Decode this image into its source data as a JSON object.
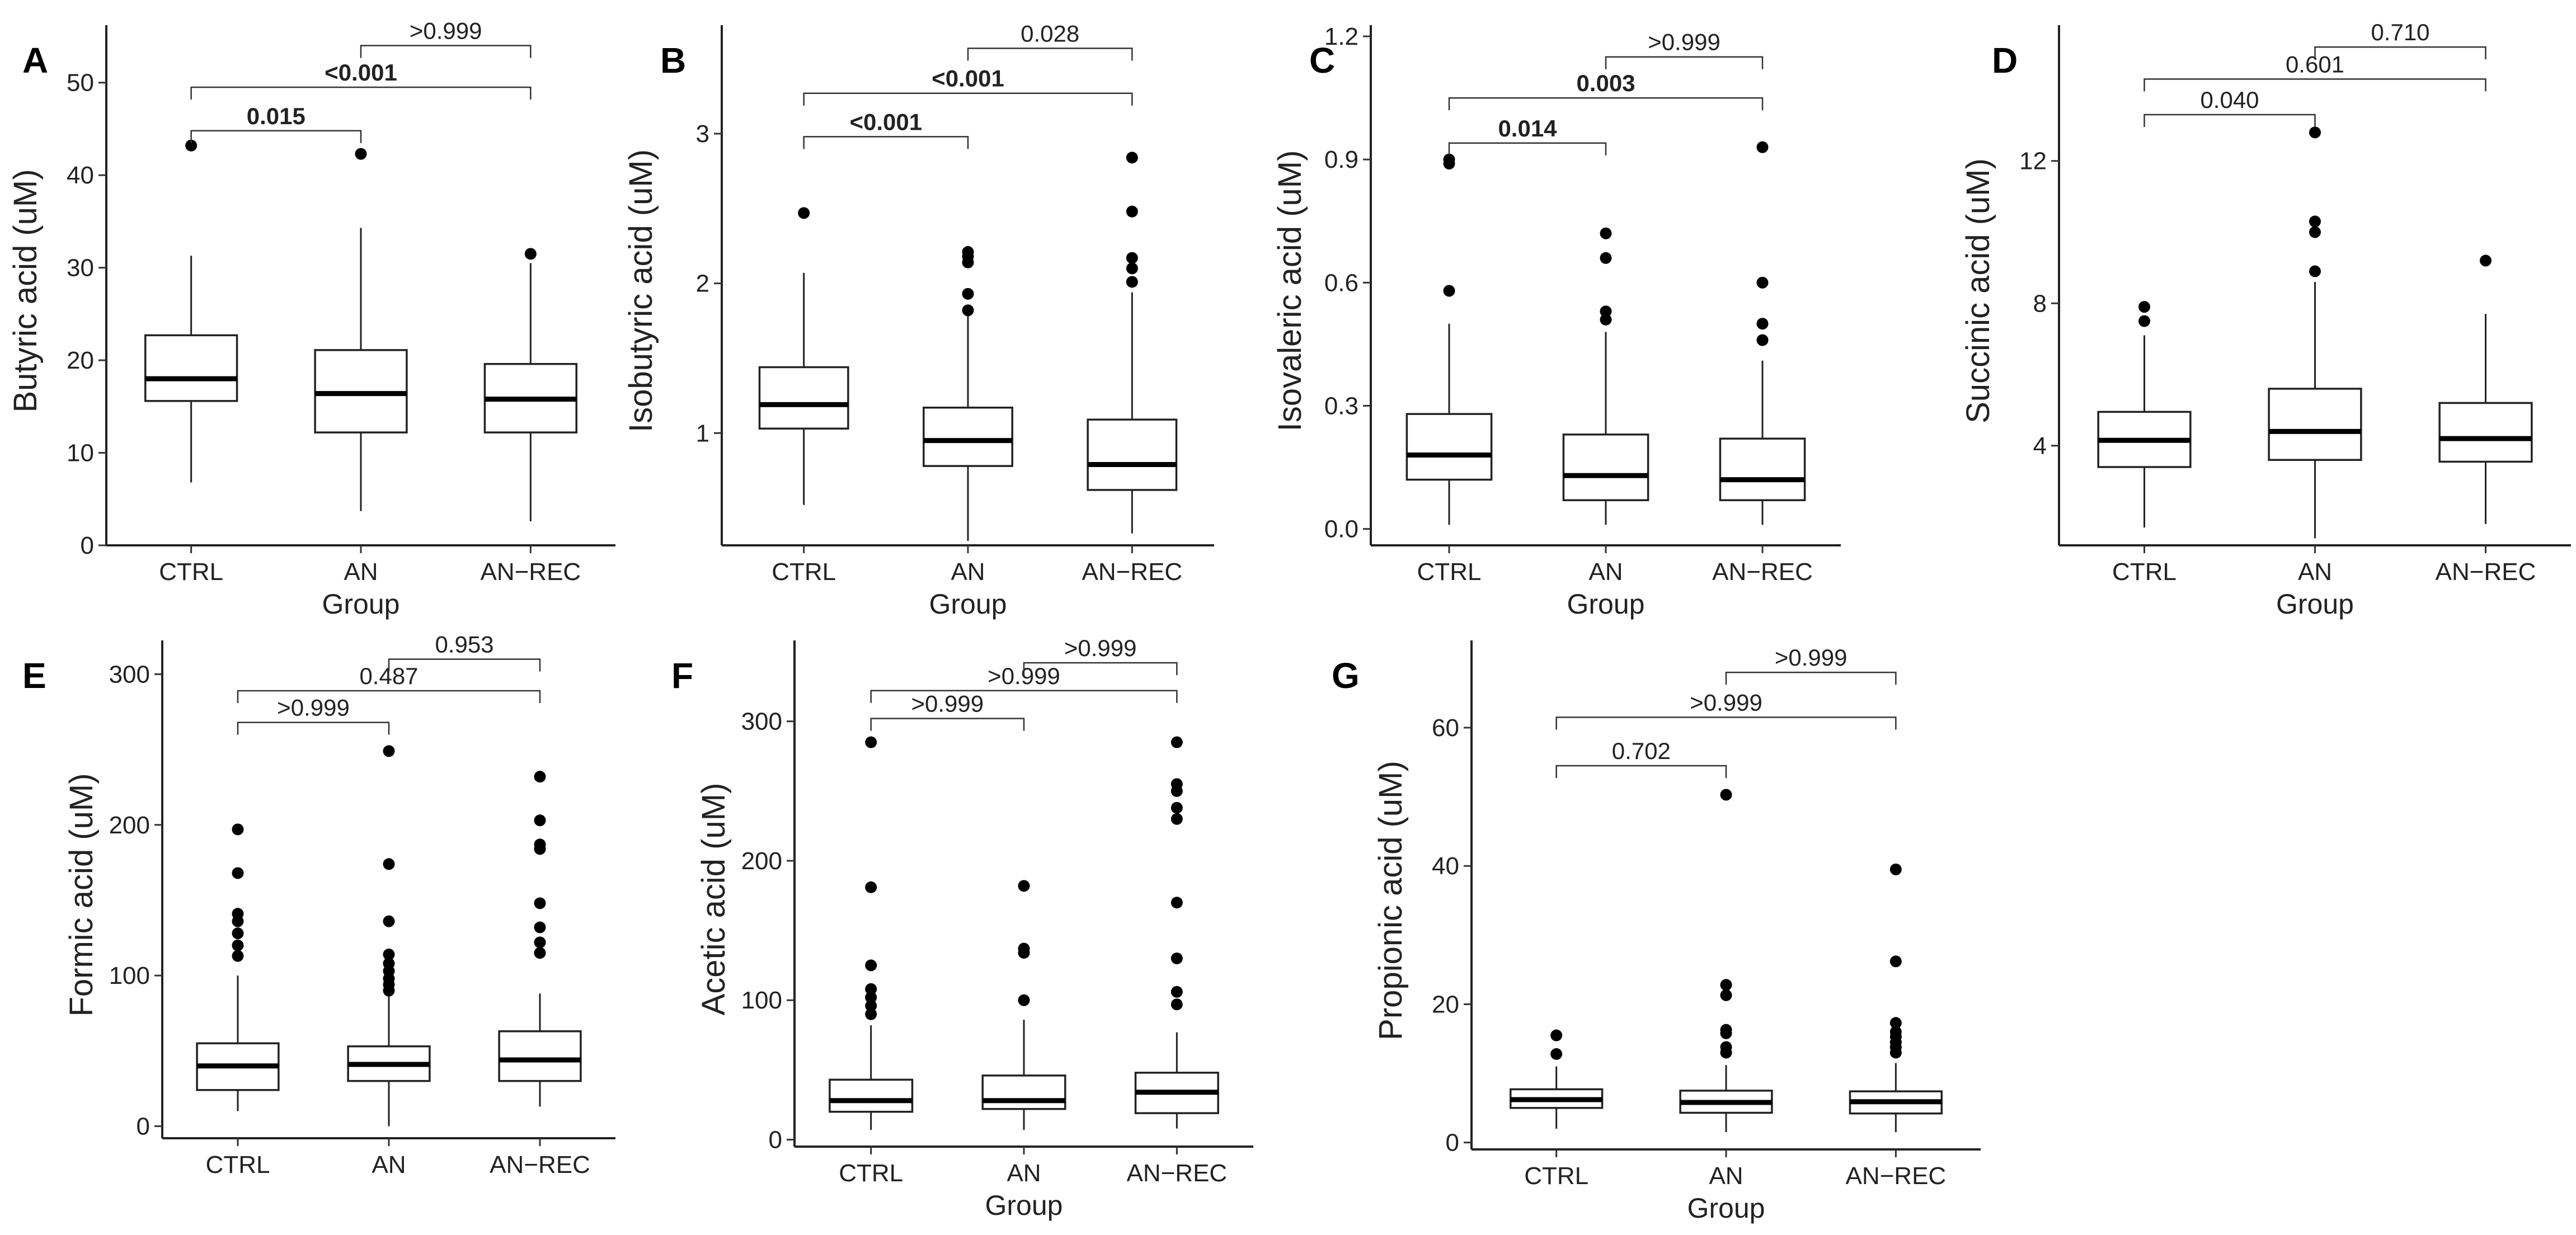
{
  "chart_data": [
    {
      "panel": "A",
      "type": "box",
      "ylabel": "Butyric acid (uM)",
      "xlabel": "Group",
      "categories": [
        "CTRL",
        "AN",
        "AN−REC"
      ],
      "ylim": [
        0,
        55
      ],
      "yticks": [
        0,
        10,
        20,
        30,
        40,
        50
      ],
      "boxes": [
        {
          "low": 6.8,
          "q1": 15.6,
          "median": 18.0,
          "q3": 22.7,
          "high": 31.3,
          "outliers": [
            43.2
          ]
        },
        {
          "low": 3.7,
          "q1": 12.2,
          "median": 16.4,
          "q3": 21.1,
          "high": 34.3,
          "outliers": [
            42.3
          ]
        },
        {
          "low": 2.6,
          "q1": 12.2,
          "median": 15.8,
          "q3": 19.6,
          "high": 30.5,
          "outliers": [
            31.5
          ]
        }
      ],
      "comparisons": [
        {
          "from": 0,
          "to": 1,
          "y": 44.8,
          "label": "0.015",
          "bold": true
        },
        {
          "from": 0,
          "to": 2,
          "y": 49.5,
          "label": "<0.001",
          "bold": true
        },
        {
          "from": 1,
          "to": 2,
          "y": 54.0,
          "label": ">0.999",
          "bold": false
        }
      ]
    },
    {
      "panel": "B",
      "type": "box",
      "ylabel": "Isobutyric acid (uM)",
      "xlabel": "Group",
      "categories": [
        "CTRL",
        "AN",
        "AN−REC"
      ],
      "ylim": [
        0.25,
        3.65
      ],
      "yticks": [
        1,
        2,
        3
      ],
      "boxes": [
        {
          "low": 0.52,
          "q1": 1.03,
          "median": 1.19,
          "q3": 1.44,
          "high": 2.07,
          "outliers": [
            2.47
          ]
        },
        {
          "low": 0.28,
          "q1": 0.78,
          "median": 0.95,
          "q3": 1.17,
          "high": 1.8,
          "outliers": [
            1.82,
            1.93,
            2.14,
            2.18,
            2.21
          ]
        },
        {
          "low": 0.33,
          "q1": 0.62,
          "median": 0.79,
          "q3": 1.09,
          "high": 1.94,
          "outliers": [
            2.01,
            2.1,
            2.17,
            2.48,
            2.84
          ]
        }
      ],
      "comparisons": [
        {
          "from": 0,
          "to": 1,
          "y": 2.98,
          "label": "<0.001",
          "bold": true
        },
        {
          "from": 0,
          "to": 2,
          "y": 3.27,
          "label": "<0.001",
          "bold": true
        },
        {
          "from": 1,
          "to": 2,
          "y": 3.57,
          "label": "0.028",
          "bold": false
        }
      ]
    },
    {
      "panel": "C",
      "type": "box",
      "ylabel": "Isovaleric acid (uM)",
      "xlabel": "Group",
      "categories": [
        "CTRL",
        "AN",
        "AN−REC"
      ],
      "ylim": [
        -0.04,
        1.2
      ],
      "yticks": [
        0.0,
        0.3,
        0.6,
        0.9,
        1.2
      ],
      "tick_labels": [
        "0.0",
        "0.3",
        "0.6",
        "0.9",
        "1.2"
      ],
      "boxes": [
        {
          "low": 0.01,
          "q1": 0.12,
          "median": 0.18,
          "q3": 0.28,
          "high": 0.5,
          "outliers": [
            0.58,
            0.89,
            0.9
          ]
        },
        {
          "low": 0.01,
          "q1": 0.07,
          "median": 0.13,
          "q3": 0.23,
          "high": 0.48,
          "outliers": [
            0.51,
            0.53,
            0.66,
            0.72
          ]
        },
        {
          "low": 0.01,
          "q1": 0.07,
          "median": 0.12,
          "q3": 0.22,
          "high": 0.41,
          "outliers": [
            0.46,
            0.5,
            0.6,
            0.93
          ]
        }
      ],
      "comparisons": [
        {
          "from": 0,
          "to": 1,
          "y": 0.94,
          "label": "0.014",
          "bold": true
        },
        {
          "from": 0,
          "to": 2,
          "y": 1.05,
          "label": "0.003",
          "bold": true
        },
        {
          "from": 1,
          "to": 2,
          "y": 1.15,
          "label": ">0.999",
          "bold": false
        }
      ]
    },
    {
      "panel": "D",
      "type": "box",
      "ylabel": "Succinic acid (uM)",
      "xlabel": "Group",
      "categories": [
        "CTRL",
        "AN",
        "AN−REC"
      ],
      "ylim": [
        1.2,
        15.5
      ],
      "yticks": [
        4,
        8,
        12
      ],
      "boxes": [
        {
          "low": 1.7,
          "q1": 3.4,
          "median": 4.15,
          "q3": 4.95,
          "high": 7.1,
          "outliers": [
            7.5,
            7.9
          ]
        },
        {
          "low": 1.4,
          "q1": 3.6,
          "median": 4.4,
          "q3": 5.6,
          "high": 8.6,
          "outliers": [
            8.9,
            10.0,
            10.3,
            12.8
          ]
        },
        {
          "low": 1.8,
          "q1": 3.55,
          "median": 4.2,
          "q3": 5.2,
          "high": 7.7,
          "outliers": [
            9.2
          ]
        }
      ],
      "comparisons": [
        {
          "from": 0,
          "to": 1,
          "y": 13.3,
          "label": "0.040",
          "bold": false
        },
        {
          "from": 0,
          "to": 2,
          "y": 14.3,
          "label": "0.601",
          "bold": false
        },
        {
          "from": 1,
          "to": 2,
          "y": 15.2,
          "label": "0.710",
          "bold": false
        }
      ]
    },
    {
      "panel": "E",
      "type": "box",
      "ylabel": "Formic acid (uM)",
      "xlabel": "",
      "categories": [
        "CTRL",
        "AN",
        "AN−REC"
      ],
      "ylim": [
        -8,
        315
      ],
      "yticks": [
        0,
        100,
        200,
        300
      ],
      "boxes": [
        {
          "low": 10,
          "q1": 24,
          "median": 40,
          "q3": 55,
          "high": 100,
          "outliers": [
            113,
            120,
            128,
            136,
            141,
            168,
            197
          ]
        },
        {
          "low": 0,
          "q1": 30,
          "median": 41,
          "q3": 53,
          "high": 88,
          "outliers": [
            90,
            94,
            98,
            103,
            108,
            114,
            136,
            174,
            249
          ]
        },
        {
          "low": 13,
          "q1": 30,
          "median": 44,
          "q3": 63,
          "high": 88,
          "outliers": [
            115,
            122,
            132,
            148,
            184,
            187,
            203,
            232
          ]
        }
      ],
      "comparisons": [
        {
          "from": 0,
          "to": 1,
          "y": 268,
          "label": ">0.999",
          "bold": false
        },
        {
          "from": 0,
          "to": 2,
          "y": 289,
          "label": "0.487",
          "bold": false
        },
        {
          "from": 1,
          "to": 2,
          "y": 310,
          "label": "0.953",
          "bold": false
        }
      ]
    },
    {
      "panel": "F",
      "type": "box",
      "ylabel": "Acetic acid (uM)",
      "xlabel": "Group",
      "categories": [
        "CTRL",
        "AN",
        "AN−REC"
      ],
      "ylim": [
        -5,
        350
      ],
      "yticks": [
        0,
        100,
        200,
        300
      ],
      "boxes": [
        {
          "low": 7,
          "q1": 20,
          "median": 28,
          "q3": 43,
          "high": 82,
          "outliers": [
            90,
            96,
            102,
            108,
            125,
            181,
            285
          ]
        },
        {
          "low": 7,
          "q1": 22,
          "median": 28,
          "q3": 46,
          "high": 86,
          "outliers": [
            100,
            134,
            137,
            182
          ]
        },
        {
          "low": 8,
          "q1": 19,
          "median": 34,
          "q3": 48,
          "high": 77,
          "outliers": [
            97,
            106,
            130,
            170,
            230,
            238,
            250,
            255,
            285
          ]
        }
      ],
      "comparisons": [
        {
          "from": 0,
          "to": 1,
          "y": 302,
          "label": ">0.999",
          "bold": false
        },
        {
          "from": 0,
          "to": 2,
          "y": 322,
          "label": ">0.999",
          "bold": false
        },
        {
          "from": 1,
          "to": 2,
          "y": 342,
          "label": ">0.999",
          "bold": false
        }
      ]
    },
    {
      "panel": "G",
      "type": "box",
      "ylabel": "Propionic acid (uM)",
      "xlabel": "Group",
      "categories": [
        "CTRL",
        "AN",
        "AN−REC"
      ],
      "ylim": [
        -1,
        71
      ],
      "yticks": [
        0,
        20,
        40,
        60
      ],
      "boxes": [
        {
          "low": 2.0,
          "q1": 5.0,
          "median": 6.2,
          "q3": 7.7,
          "high": 11.0,
          "outliers": [
            12.8,
            15.5
          ]
        },
        {
          "low": 1.5,
          "q1": 4.3,
          "median": 5.8,
          "q3": 7.5,
          "high": 11.2,
          "outliers": [
            13.0,
            13.8,
            15.8,
            16.3,
            21.3,
            22.8,
            50.3
          ]
        },
        {
          "low": 1.5,
          "q1": 4.2,
          "median": 5.9,
          "q3": 7.4,
          "high": 11.5,
          "outliers": [
            13.0,
            13.8,
            14.5,
            15.3,
            16.0,
            17.3,
            26.2,
            39.5
          ]
        }
      ],
      "comparisons": [
        {
          "from": 0,
          "to": 1,
          "y": 54.5,
          "label": "0.702",
          "bold": false
        },
        {
          "from": 0,
          "to": 2,
          "y": 61.5,
          "label": ">0.999",
          "bold": false
        },
        {
          "from": 1,
          "to": 2,
          "y": 68.0,
          "label": ">0.999",
          "bold": false
        }
      ]
    }
  ]
}
